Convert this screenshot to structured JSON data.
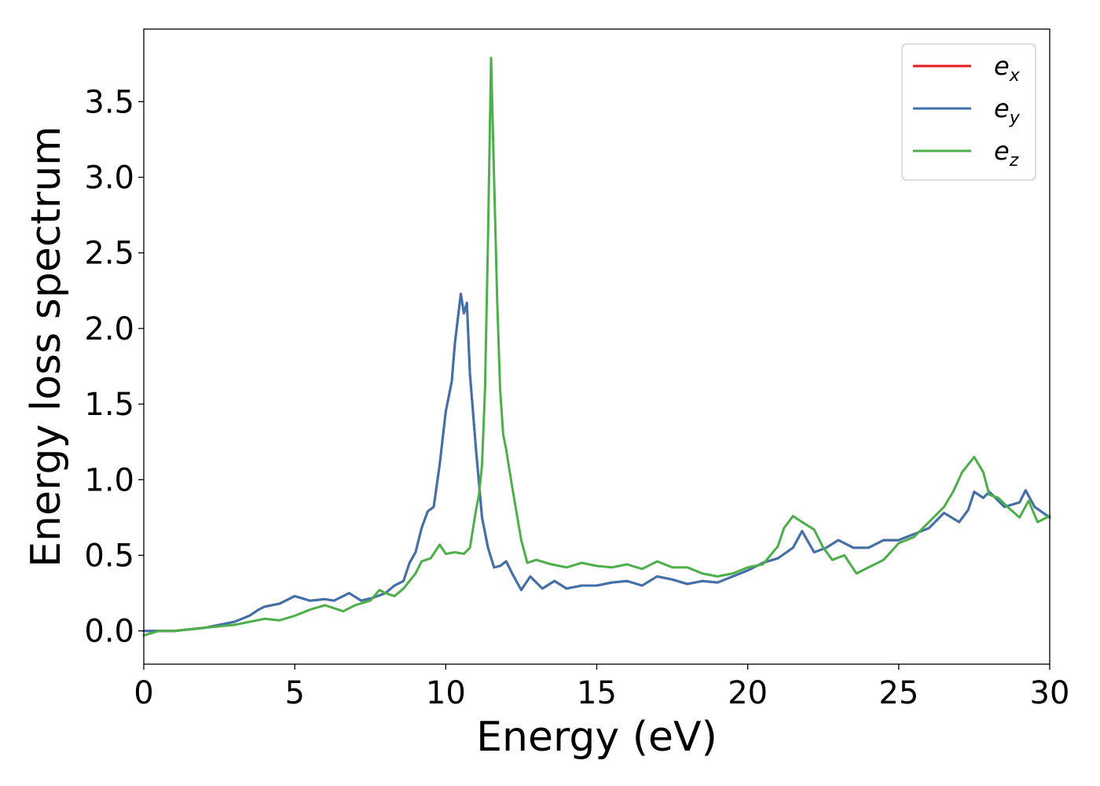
{
  "chart_data": {
    "type": "line",
    "title": "",
    "xlabel": "Energy (eV)",
    "ylabel": "Energy loss spectrum",
    "xlim": [
      0,
      30
    ],
    "ylim": [
      -0.22,
      3.98
    ],
    "xticks": [
      0,
      5,
      10,
      15,
      20,
      25,
      30
    ],
    "xtick_labels": [
      "0",
      "5",
      "10",
      "15",
      "20",
      "25",
      "30"
    ],
    "yticks": [
      0.0,
      0.5,
      1.0,
      1.5,
      2.0,
      2.5,
      3.0,
      3.5
    ],
    "ytick_labels": [
      "0.0",
      "0.5",
      "1.0",
      "1.5",
      "2.0",
      "2.5",
      "3.0",
      "3.5"
    ],
    "grid": false,
    "legend": {
      "position": "top-right",
      "entries": [
        {
          "base": "e",
          "sub": "x",
          "color": "#e41a1c"
        },
        {
          "base": "e",
          "sub": "y",
          "color": "#3e72ad"
        },
        {
          "base": "e",
          "sub": "z",
          "color": "#4daf4a"
        }
      ]
    },
    "series": [
      {
        "color": "#e41a1c",
        "x": [
          0,
          0.5,
          1,
          1.5,
          2,
          2.5,
          3,
          3.5,
          3.8,
          4,
          4.5,
          5,
          5.5,
          6,
          6.3,
          6.8,
          7.2,
          7.6,
          8,
          8.3,
          8.6,
          8.8,
          9,
          9.2,
          9.4,
          9.6,
          9.8,
          10,
          10.2,
          10.3,
          10.5,
          10.6,
          10.7,
          10.8,
          11,
          11.2,
          11.4,
          11.6,
          11.8,
          12,
          12.2,
          12.5,
          12.8,
          13.2,
          13.6,
          14,
          14.5,
          15,
          15.5,
          16,
          16.5,
          17,
          17.5,
          18,
          18.5,
          19,
          19.5,
          20,
          20.5,
          21,
          21.5,
          21.8,
          22.2,
          22.6,
          23,
          23.5,
          24,
          24.5,
          25,
          25.5,
          26,
          26.5,
          27,
          27.3,
          27.5,
          27.8,
          28,
          28.5,
          29,
          29.2,
          29.5,
          30
        ],
        "y": [
          0.0,
          0.0,
          0.0,
          0.01,
          0.02,
          0.04,
          0.06,
          0.1,
          0.14,
          0.16,
          0.18,
          0.23,
          0.2,
          0.21,
          0.2,
          0.25,
          0.2,
          0.22,
          0.25,
          0.3,
          0.33,
          0.45,
          0.52,
          0.68,
          0.79,
          0.82,
          1.1,
          1.45,
          1.65,
          1.9,
          2.23,
          2.1,
          2.17,
          1.7,
          1.2,
          0.75,
          0.55,
          0.42,
          0.43,
          0.46,
          0.38,
          0.27,
          0.36,
          0.28,
          0.33,
          0.28,
          0.3,
          0.3,
          0.32,
          0.33,
          0.3,
          0.36,
          0.34,
          0.31,
          0.33,
          0.32,
          0.36,
          0.4,
          0.45,
          0.48,
          0.55,
          0.66,
          0.52,
          0.55,
          0.6,
          0.55,
          0.55,
          0.6,
          0.6,
          0.64,
          0.68,
          0.78,
          0.72,
          0.8,
          0.92,
          0.88,
          0.92,
          0.82,
          0.85,
          0.93,
          0.82,
          0.75
        ]
      },
      {
        "color": "#3e72ad",
        "x": [
          0,
          0.5,
          1,
          1.5,
          2,
          2.5,
          3,
          3.5,
          3.8,
          4,
          4.5,
          5,
          5.5,
          6,
          6.3,
          6.8,
          7.2,
          7.6,
          8,
          8.3,
          8.6,
          8.8,
          9,
          9.2,
          9.4,
          9.6,
          9.8,
          10,
          10.2,
          10.3,
          10.5,
          10.6,
          10.7,
          10.8,
          11,
          11.2,
          11.4,
          11.6,
          11.8,
          12,
          12.2,
          12.5,
          12.8,
          13.2,
          13.6,
          14,
          14.5,
          15,
          15.5,
          16,
          16.5,
          17,
          17.5,
          18,
          18.5,
          19,
          19.5,
          20,
          20.5,
          21,
          21.5,
          21.8,
          22.2,
          22.6,
          23,
          23.5,
          24,
          24.5,
          25,
          25.5,
          26,
          26.5,
          27,
          27.3,
          27.5,
          27.8,
          28,
          28.5,
          29,
          29.2,
          29.5,
          30
        ],
        "y": [
          0.0,
          0.0,
          0.0,
          0.01,
          0.02,
          0.04,
          0.06,
          0.1,
          0.14,
          0.16,
          0.18,
          0.23,
          0.2,
          0.21,
          0.2,
          0.25,
          0.2,
          0.22,
          0.25,
          0.3,
          0.33,
          0.45,
          0.52,
          0.68,
          0.79,
          0.82,
          1.1,
          1.45,
          1.65,
          1.9,
          2.23,
          2.1,
          2.17,
          1.7,
          1.2,
          0.75,
          0.55,
          0.42,
          0.43,
          0.46,
          0.38,
          0.27,
          0.36,
          0.28,
          0.33,
          0.28,
          0.3,
          0.3,
          0.32,
          0.33,
          0.3,
          0.36,
          0.34,
          0.31,
          0.33,
          0.32,
          0.36,
          0.4,
          0.45,
          0.48,
          0.55,
          0.66,
          0.52,
          0.55,
          0.6,
          0.55,
          0.55,
          0.6,
          0.6,
          0.64,
          0.68,
          0.78,
          0.72,
          0.8,
          0.92,
          0.88,
          0.92,
          0.82,
          0.85,
          0.93,
          0.82,
          0.75
        ]
      },
      {
        "color": "#4daf4a",
        "x": [
          0,
          0.5,
          1,
          1.5,
          2,
          2.5,
          3,
          3.5,
          4,
          4.5,
          5,
          5.5,
          6,
          6.3,
          6.6,
          7,
          7.5,
          7.8,
          8,
          8.3,
          8.6,
          9,
          9.2,
          9.5,
          9.8,
          10,
          10.3,
          10.6,
          10.8,
          11,
          11.1,
          11.2,
          11.3,
          11.4,
          11.5,
          11.6,
          11.7,
          11.8,
          11.9,
          12,
          12.2,
          12.5,
          12.7,
          13,
          13.5,
          14,
          14.5,
          15,
          15.5,
          16,
          16.5,
          17,
          17.5,
          18,
          18.5,
          19,
          19.5,
          20,
          20.5,
          21,
          21.2,
          21.5,
          21.8,
          22.2,
          22.5,
          22.8,
          23.2,
          23.6,
          24,
          24.5,
          25,
          25.5,
          26,
          26.5,
          26.8,
          27.1,
          27.5,
          27.8,
          28,
          28.3,
          28.6,
          29,
          29.3,
          29.6,
          30
        ],
        "y": [
          -0.03,
          0.0,
          0.0,
          0.01,
          0.02,
          0.03,
          0.04,
          0.06,
          0.08,
          0.07,
          0.1,
          0.14,
          0.17,
          0.15,
          0.13,
          0.17,
          0.2,
          0.27,
          0.25,
          0.23,
          0.28,
          0.38,
          0.46,
          0.48,
          0.57,
          0.51,
          0.52,
          0.51,
          0.55,
          0.8,
          0.9,
          1.1,
          1.6,
          2.6,
          3.79,
          3.0,
          2.2,
          1.6,
          1.3,
          1.2,
          0.95,
          0.6,
          0.45,
          0.47,
          0.44,
          0.42,
          0.45,
          0.43,
          0.42,
          0.44,
          0.41,
          0.46,
          0.42,
          0.42,
          0.38,
          0.36,
          0.38,
          0.42,
          0.44,
          0.56,
          0.68,
          0.76,
          0.72,
          0.67,
          0.55,
          0.47,
          0.5,
          0.38,
          0.42,
          0.47,
          0.58,
          0.62,
          0.72,
          0.82,
          0.92,
          1.05,
          1.15,
          1.05,
          0.9,
          0.88,
          0.82,
          0.75,
          0.86,
          0.72,
          0.76
        ]
      }
    ]
  }
}
